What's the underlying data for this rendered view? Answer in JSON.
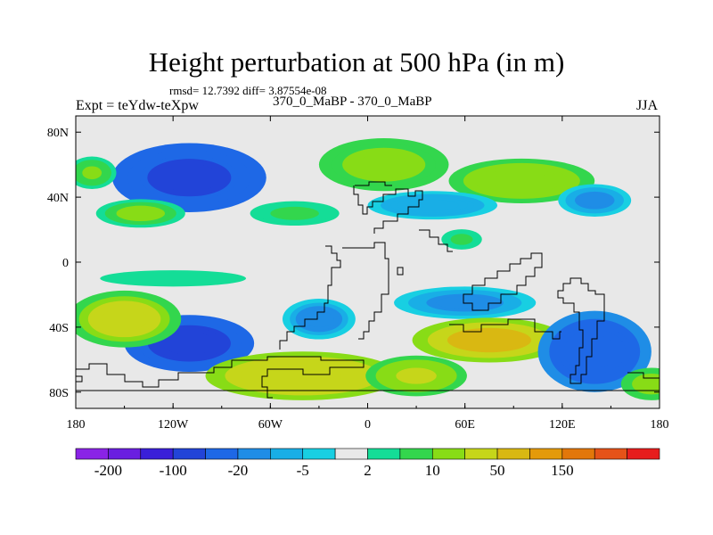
{
  "title": "Height perturbation at 500 hPa (in m)",
  "stats": "rmsd= 12.7392 diff= 3.87554e-08",
  "left_label": "Expt = teYdw-teXpw",
  "center_label": "370_0_MaBP - 370_0_MaBP",
  "right_label": "JJA",
  "chart_data": {
    "type": "heatmap",
    "projection": "cylindrical equidistant",
    "xlim": [
      -180,
      180
    ],
    "ylim": [
      -90,
      90
    ],
    "x_ticks": [
      {
        "value": -180,
        "label": "180"
      },
      {
        "value": -120,
        "label": "120W"
      },
      {
        "value": -60,
        "label": "60W"
      },
      {
        "value": 0,
        "label": "0"
      },
      {
        "value": 60,
        "label": "60E"
      },
      {
        "value": 120,
        "label": "120E"
      },
      {
        "value": 180,
        "label": "180"
      }
    ],
    "y_ticks": [
      {
        "value": 80,
        "label": "80N"
      },
      {
        "value": 40,
        "label": "40N"
      },
      {
        "value": 0,
        "label": "0"
      },
      {
        "value": -40,
        "label": "40S"
      },
      {
        "value": -80,
        "label": "80S"
      }
    ],
    "colorbar": {
      "colors": [
        "#8a23e6",
        "#6a1ee0",
        "#3a1fd9",
        "#2244d8",
        "#1e68e6",
        "#1f8de6",
        "#19aee6",
        "#18cfe2",
        "#e8e8e8",
        "#14dd97",
        "#33d64d",
        "#88dc16",
        "#c6d61a",
        "#d9b812",
        "#e49a0a",
        "#e2770a",
        "#e55218",
        "#e71d1d"
      ],
      "labels": [
        "-200",
        "-100",
        "-20",
        "-5",
        "2",
        "10",
        "50",
        "150"
      ]
    },
    "fields": [
      {
        "lon": -110,
        "lat": 52,
        "dlon": 38,
        "dlat": 17,
        "value": -60
      },
      {
        "lon": 10,
        "lat": 60,
        "dlon": 32,
        "dlat": 13,
        "value": 15
      },
      {
        "lon": 95,
        "lat": 50,
        "dlon": 36,
        "dlat": 11,
        "value": 18
      },
      {
        "lon": 140,
        "lat": 38,
        "dlon": 18,
        "dlat": 8,
        "value": -12
      },
      {
        "lon": -140,
        "lat": 30,
        "dlon": 22,
        "dlat": 7,
        "value": 12
      },
      {
        "lon": -45,
        "lat": 30,
        "dlon": 22,
        "dlat": 6,
        "value": 6
      },
      {
        "lon": 40,
        "lat": 35,
        "dlon": 32,
        "dlat": 7,
        "value": -10
      },
      {
        "lon": 58,
        "lat": 14,
        "dlon": 10,
        "dlat": 5,
        "value": 6
      },
      {
        "lon": -120,
        "lat": -10,
        "dlon": 45,
        "dlat": 5,
        "value": 4
      },
      {
        "lon": -110,
        "lat": -50,
        "dlon": 32,
        "dlat": 14,
        "value": -70
      },
      {
        "lon": -150,
        "lat": -35,
        "dlon": 28,
        "dlat": 14,
        "value": 25
      },
      {
        "lon": -30,
        "lat": -35,
        "dlon": 18,
        "dlat": 10,
        "value": -14
      },
      {
        "lon": -40,
        "lat": -70,
        "dlon": 48,
        "dlat": 12,
        "value": 45
      },
      {
        "lon": 60,
        "lat": -25,
        "dlon": 35,
        "dlat": 8,
        "value": -12
      },
      {
        "lon": 75,
        "lat": -48,
        "dlon": 38,
        "dlat": 11,
        "value": 55
      },
      {
        "lon": 30,
        "lat": -70,
        "dlon": 25,
        "dlat": 10,
        "value": 20
      },
      {
        "lon": 140,
        "lat": -55,
        "dlon": 28,
        "dlat": 20,
        "value": -45
      },
      {
        "lon": 175,
        "lat": -75,
        "dlon": 15,
        "dlat": 8,
        "value": 15
      },
      {
        "lon": -170,
        "lat": 55,
        "dlon": 12,
        "dlat": 8,
        "value": 10
      }
    ]
  }
}
